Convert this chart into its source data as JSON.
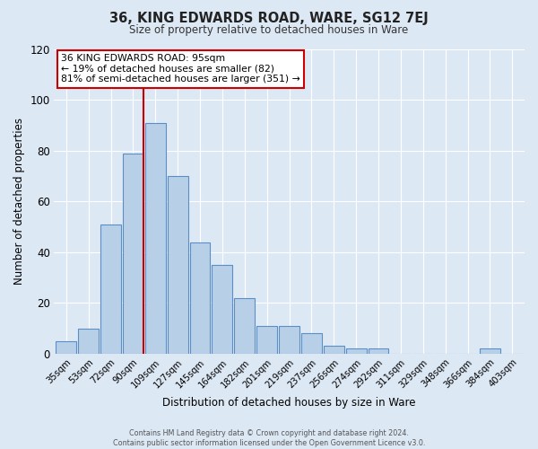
{
  "title": "36, KING EDWARDS ROAD, WARE, SG12 7EJ",
  "subtitle": "Size of property relative to detached houses in Ware",
  "xlabel": "Distribution of detached houses by size in Ware",
  "ylabel": "Number of detached properties",
  "bin_labels": [
    "35sqm",
    "53sqm",
    "72sqm",
    "90sqm",
    "109sqm",
    "127sqm",
    "145sqm",
    "164sqm",
    "182sqm",
    "201sqm",
    "219sqm",
    "237sqm",
    "256sqm",
    "274sqm",
    "292sqm",
    "311sqm",
    "329sqm",
    "348sqm",
    "366sqm",
    "384sqm",
    "403sqm"
  ],
  "bar_heights": [
    5,
    10,
    51,
    79,
    91,
    70,
    44,
    35,
    22,
    11,
    11,
    8,
    3,
    2,
    2,
    0,
    0,
    0,
    0,
    2,
    0
  ],
  "bar_color": "#b8cfe8",
  "bar_edge_color": "#5b8ec4",
  "background_color": "#dde8f5",
  "grid_color": "#ffffff",
  "vline_x_index": 3,
  "vline_color": "#cc0000",
  "annotation_line1": "36 KING EDWARDS ROAD: 95sqm",
  "annotation_line2": "← 19% of detached houses are smaller (82)",
  "annotation_line3": "81% of semi-detached houses are larger (351) →",
  "annotation_box_color": "#cc0000",
  "ylim": [
    0,
    120
  ],
  "yticks": [
    0,
    20,
    40,
    60,
    80,
    100,
    120
  ],
  "footer_line1": "Contains HM Land Registry data © Crown copyright and database right 2024.",
  "footer_line2": "Contains public sector information licensed under the Open Government Licence v3.0."
}
